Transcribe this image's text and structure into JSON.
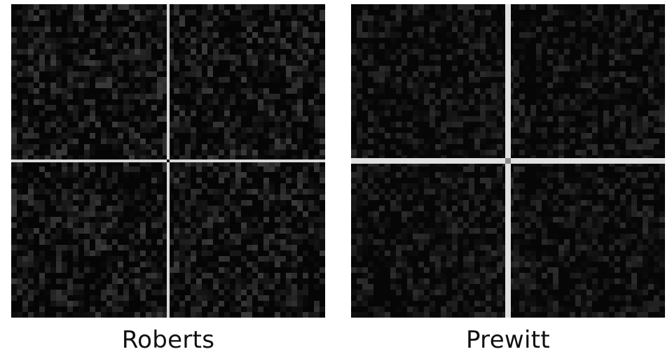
{
  "panels": [
    {
      "label": "Roberts",
      "background": "#050505",
      "divider_color": "#d9d9d9",
      "center_color": "#111111",
      "noise_max_gray": 58
    },
    {
      "label": "Prewitt",
      "background": "#060606",
      "divider_color": "#e0e0e0",
      "center_color": "#8a8a8a",
      "noise_max_gray": 44
    }
  ]
}
